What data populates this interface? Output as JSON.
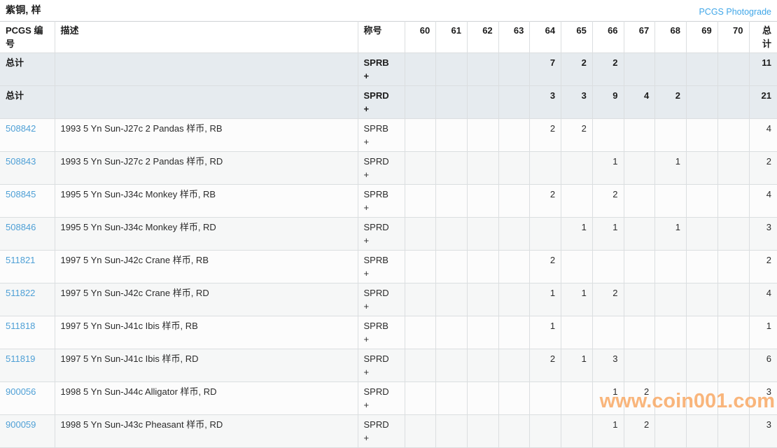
{
  "page": {
    "title": "紫铜, 样",
    "photograde_link": "PCGS Photograde"
  },
  "colors": {
    "link_blue": "#4fa0d6",
    "photograde_blue": "#41a7e8",
    "totals_row_bg": "#e6ebef",
    "row_alt_bg": "#f6f7f7",
    "border": "#dbdee0",
    "watermark_orange": "#f7a35a"
  },
  "table": {
    "headers": {
      "pcgs_no": "PCGS 编号",
      "description": "描述",
      "designation": "称号",
      "grades": [
        "60",
        "61",
        "62",
        "63",
        "64",
        "65",
        "66",
        "67",
        "68",
        "69",
        "70"
      ],
      "total": "总计"
    },
    "totals_rows": [
      {
        "label": "总计",
        "description": "",
        "designation": "SPRB +",
        "grades": [
          "",
          "",
          "",
          "",
          "7",
          "2",
          "2",
          "",
          "",
          "",
          ""
        ],
        "total": "11"
      },
      {
        "label": "总计",
        "description": "",
        "designation": "SPRD +",
        "grades": [
          "",
          "",
          "",
          "",
          "3",
          "3",
          "9",
          "4",
          "2",
          "",
          ""
        ],
        "total": "21"
      }
    ],
    "rows": [
      {
        "pcgs_no": "508842",
        "description": "1993 5 Yn Sun-J27c 2 Pandas 样币, RB",
        "designation": "SPRB +",
        "grades": [
          "",
          "",
          "",
          "",
          "2",
          "2",
          "",
          "",
          "",
          "",
          ""
        ],
        "total": "4"
      },
      {
        "pcgs_no": "508843",
        "description": "1993 5 Yn Sun-J27c 2 Pandas 样币, RD",
        "designation": "SPRD +",
        "grades": [
          "",
          "",
          "",
          "",
          "",
          "",
          "1",
          "",
          "1",
          "",
          ""
        ],
        "total": "2"
      },
      {
        "pcgs_no": "508845",
        "description": "1995 5 Yn Sun-J34c Monkey 样币, RB",
        "designation": "SPRB +",
        "grades": [
          "",
          "",
          "",
          "",
          "2",
          "",
          "2",
          "",
          "",
          "",
          ""
        ],
        "total": "4"
      },
      {
        "pcgs_no": "508846",
        "description": "1995 5 Yn Sun-J34c Monkey 样币, RD",
        "designation": "SPRD +",
        "grades": [
          "",
          "",
          "",
          "",
          "",
          "1",
          "1",
          "",
          "1",
          "",
          ""
        ],
        "total": "3"
      },
      {
        "pcgs_no": "511821",
        "description": "1997 5 Yn Sun-J42c Crane 样币, RB",
        "designation": "SPRB +",
        "grades": [
          "",
          "",
          "",
          "",
          "2",
          "",
          "",
          "",
          "",
          "",
          ""
        ],
        "total": "2"
      },
      {
        "pcgs_no": "511822",
        "description": "1997 5 Yn Sun-J42c Crane 样币, RD",
        "designation": "SPRD +",
        "grades": [
          "",
          "",
          "",
          "",
          "1",
          "1",
          "2",
          "",
          "",
          "",
          ""
        ],
        "total": "4"
      },
      {
        "pcgs_no": "511818",
        "description": "1997 5 Yn Sun-J41c Ibis 样币, RB",
        "designation": "SPRB +",
        "grades": [
          "",
          "",
          "",
          "",
          "1",
          "",
          "",
          "",
          "",
          "",
          ""
        ],
        "total": "1"
      },
      {
        "pcgs_no": "511819",
        "description": "1997 5 Yn Sun-J41c Ibis 样币, RD",
        "designation": "SPRD +",
        "grades": [
          "",
          "",
          "",
          "",
          "2",
          "1",
          "3",
          "",
          "",
          "",
          ""
        ],
        "total": "6"
      },
      {
        "pcgs_no": "900056",
        "description": "1998 5 Yn Sun-J44c Alligator 样币, RD",
        "designation": "SPRD +",
        "grades": [
          "",
          "",
          "",
          "",
          "",
          "",
          "1",
          "2",
          "",
          "",
          ""
        ],
        "total": "3"
      },
      {
        "pcgs_no": "900059",
        "description": "1998 5 Yn Sun-J43c Pheasant 样币, RD",
        "designation": "SPRD +",
        "grades": [
          "",
          "",
          "",
          "",
          "",
          "",
          "1",
          "2",
          "",
          "",
          ""
        ],
        "total": "3"
      }
    ]
  },
  "watermark": "www.coin001.com"
}
